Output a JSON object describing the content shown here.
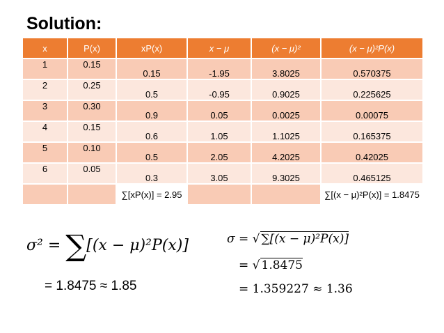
{
  "title": "Solution:",
  "table": {
    "headers": [
      "x",
      "P(x)",
      "xP(x)",
      "x − μ",
      "(x − μ)²",
      "(x − μ)²P(x)"
    ],
    "rows": [
      [
        "1",
        "0.15",
        "0.15",
        "-1.95",
        "3.8025",
        "0.570375"
      ],
      [
        "2",
        "0.25",
        "0.5",
        "-0.95",
        "0.9025",
        "0.225625"
      ],
      [
        "3",
        "0.30",
        "0.9",
        "0.05",
        "0.0025",
        "0.00075"
      ],
      [
        "4",
        "0.15",
        "0.6",
        "1.05",
        "1.1025",
        "0.165375"
      ],
      [
        "5",
        "0.10",
        "0.5",
        "2.05",
        "4.2025",
        "0.42025"
      ],
      [
        "6",
        "0.05",
        "0.3",
        "3.05",
        "9.3025",
        "0.465125"
      ]
    ],
    "sum_xpx": "∑[xP(x)] = 2.95",
    "sum_var": "∑[(x − μ)²P(x)] = 1.8475"
  },
  "formulas": {
    "variance_lhs": "σ² = ",
    "variance_rhs": "[(x − μ)²P(x)]",
    "variance_value": "= 1.8475 ≈ 1.85",
    "sd_lhs": "σ = ",
    "sd_rad": "∑[(x − μ)²P(x)]",
    "sd_step2_rad": "1.8475",
    "sd_step3": "= 1.359227 ≈ 1.36"
  }
}
